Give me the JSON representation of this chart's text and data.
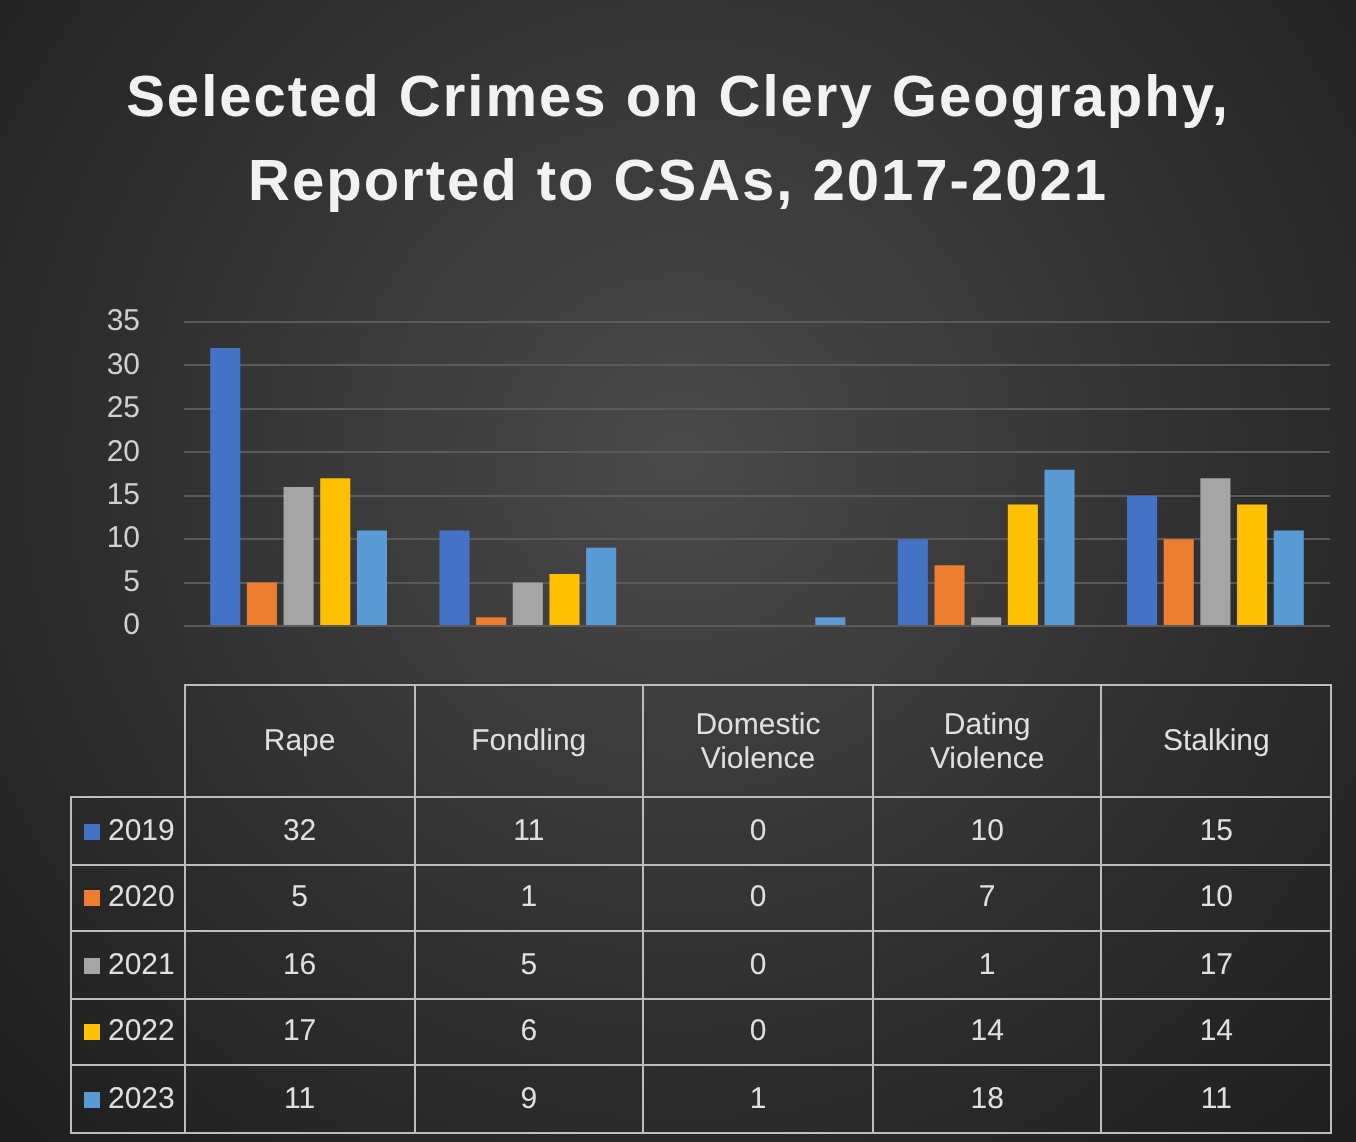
{
  "chart_data": {
    "type": "bar",
    "title": "Selected Crimes on Clery Geography, Reported to CSAs, 2017-2021",
    "categories": [
      "Rape",
      "Fondling",
      "Domestic Violence",
      "Dating Violence",
      "Stalking"
    ],
    "series": [
      {
        "name": "2019",
        "color": "#4472c4",
        "values": [
          32,
          11,
          0,
          10,
          15
        ]
      },
      {
        "name": "2020",
        "color": "#ed7d31",
        "values": [
          5,
          1,
          0,
          7,
          10
        ]
      },
      {
        "name": "2021",
        "color": "#a5a5a5",
        "values": [
          16,
          5,
          0,
          1,
          17
        ]
      },
      {
        "name": "2022",
        "color": "#ffc000",
        "values": [
          17,
          6,
          0,
          14,
          14
        ]
      },
      {
        "name": "2023",
        "color": "#5b9bd5",
        "values": [
          11,
          9,
          1,
          18,
          11
        ]
      }
    ],
    "ylim": [
      0,
      35
    ],
    "yticks": [
      0,
      5,
      10,
      15,
      20,
      25,
      30,
      35
    ],
    "grid": "y",
    "legend": "bottom",
    "data_labels": true
  }
}
